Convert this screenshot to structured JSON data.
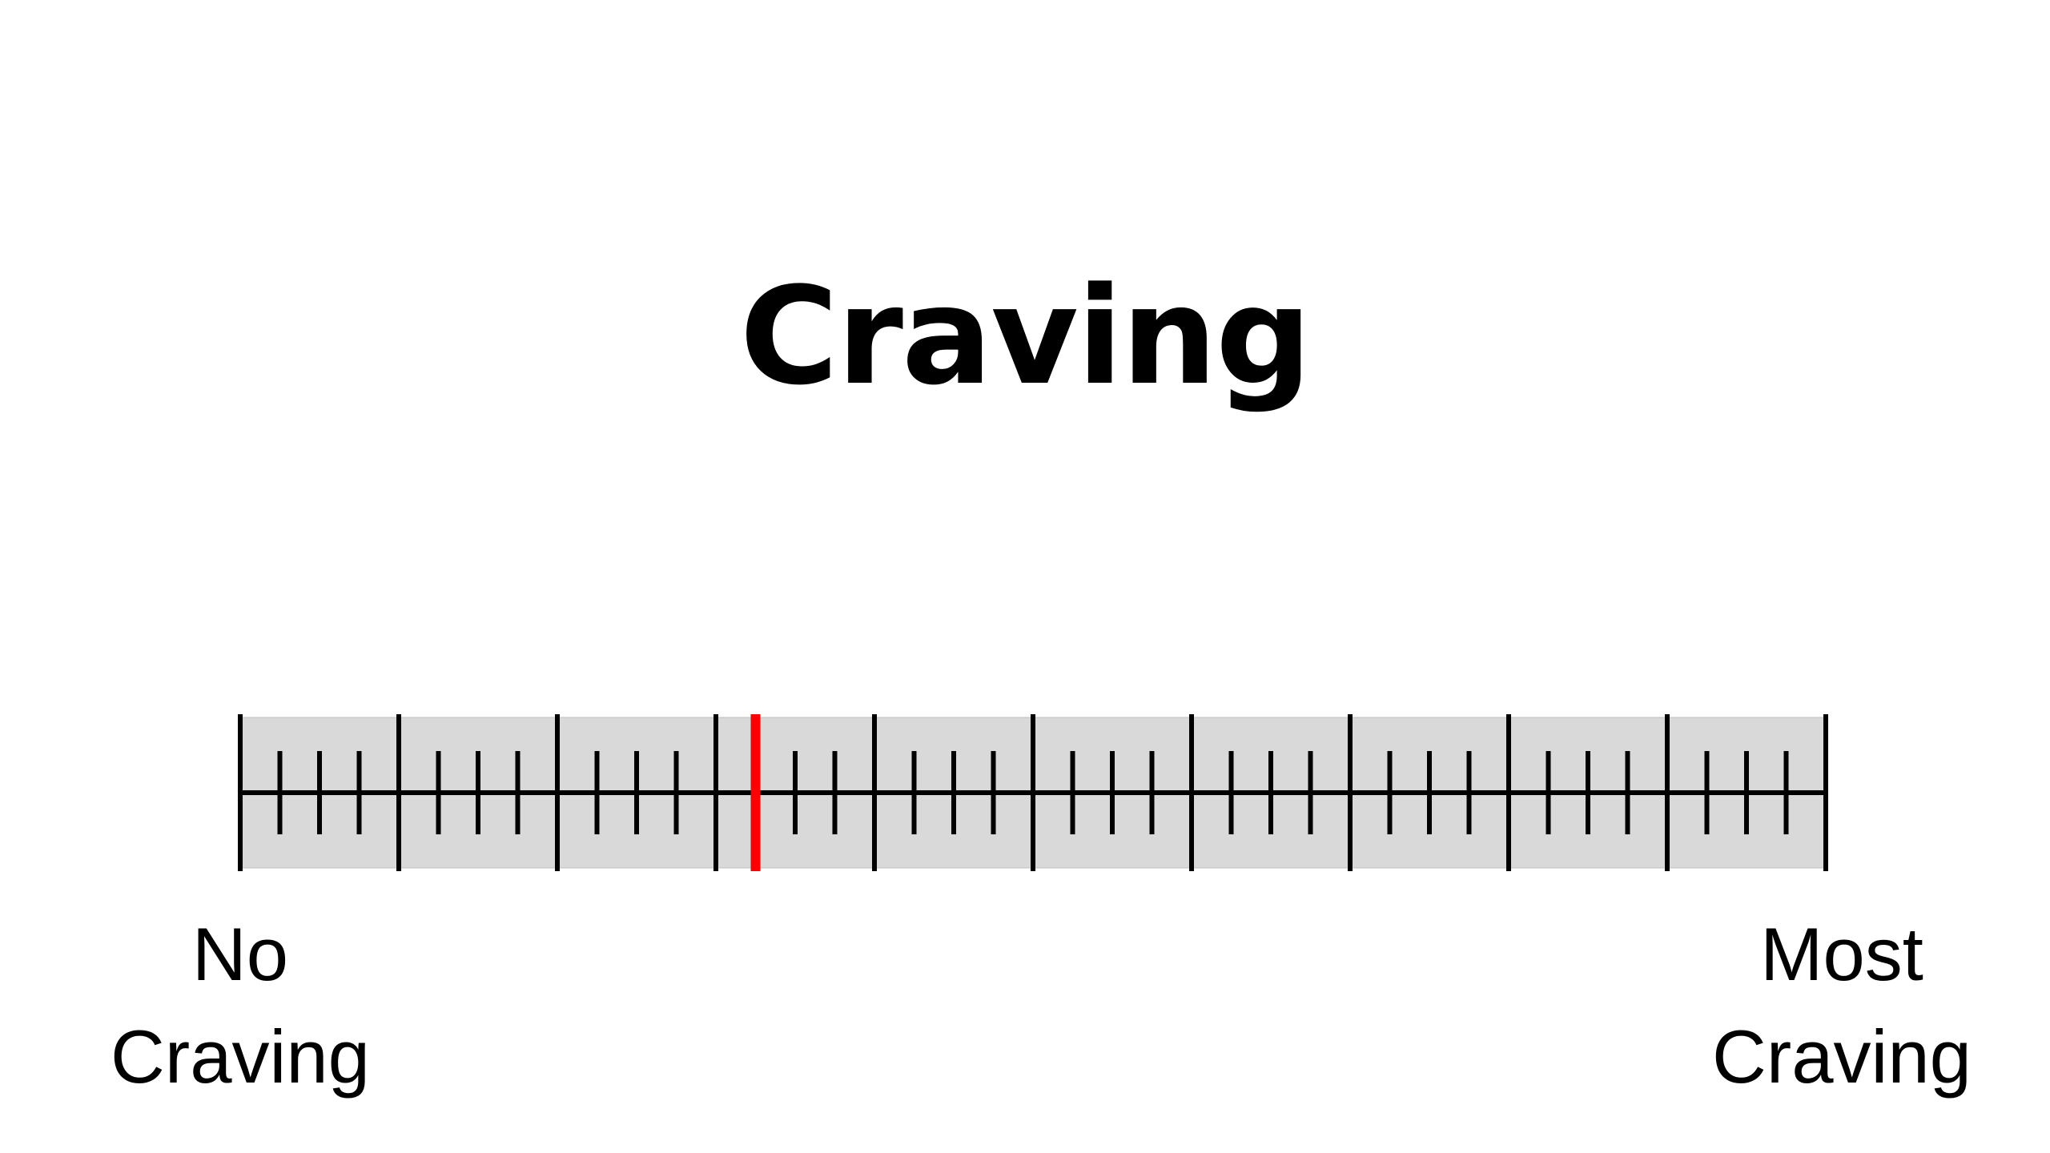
{
  "title": "Craving",
  "scale": {
    "min_label": "No\nCraving",
    "max_label": "Most\nCraving",
    "major_divisions": 10,
    "minor_ticks_per_division": 3,
    "selected_value_fraction": 0.325,
    "colors": {
      "track_fill": "#d9d9d9",
      "tick": "#000000",
      "marker": "#ff0000",
      "background": "#ffffff"
    }
  }
}
